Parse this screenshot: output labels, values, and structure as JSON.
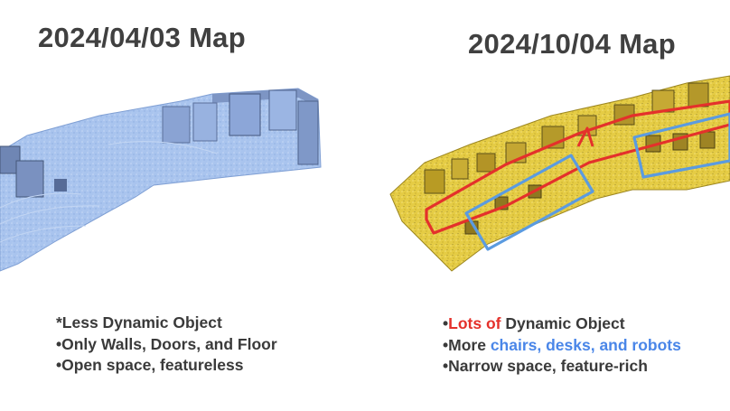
{
  "left_panel": {
    "title": "2024/04/03 Map",
    "bullets": [
      "*Less Dynamic Object",
      "•Only Walls, Doors, and Floor",
      "•Open space, featureless"
    ],
    "map_color": "#a9c4ee"
  },
  "right_panel": {
    "title": "2024/10/04 Map",
    "bullet_1": {
      "prefix": "•",
      "highlight": "Lots of",
      "rest": " Dynamic Object"
    },
    "bullet_2": {
      "prefix": "•More ",
      "highlight": "chairs, desks, and robots"
    },
    "bullet_3": "•Narrow space, feature-rich",
    "map_color": "#e8d04a",
    "red_outline_color": "#e4312b",
    "blue_box_color": "#5b9be0"
  }
}
